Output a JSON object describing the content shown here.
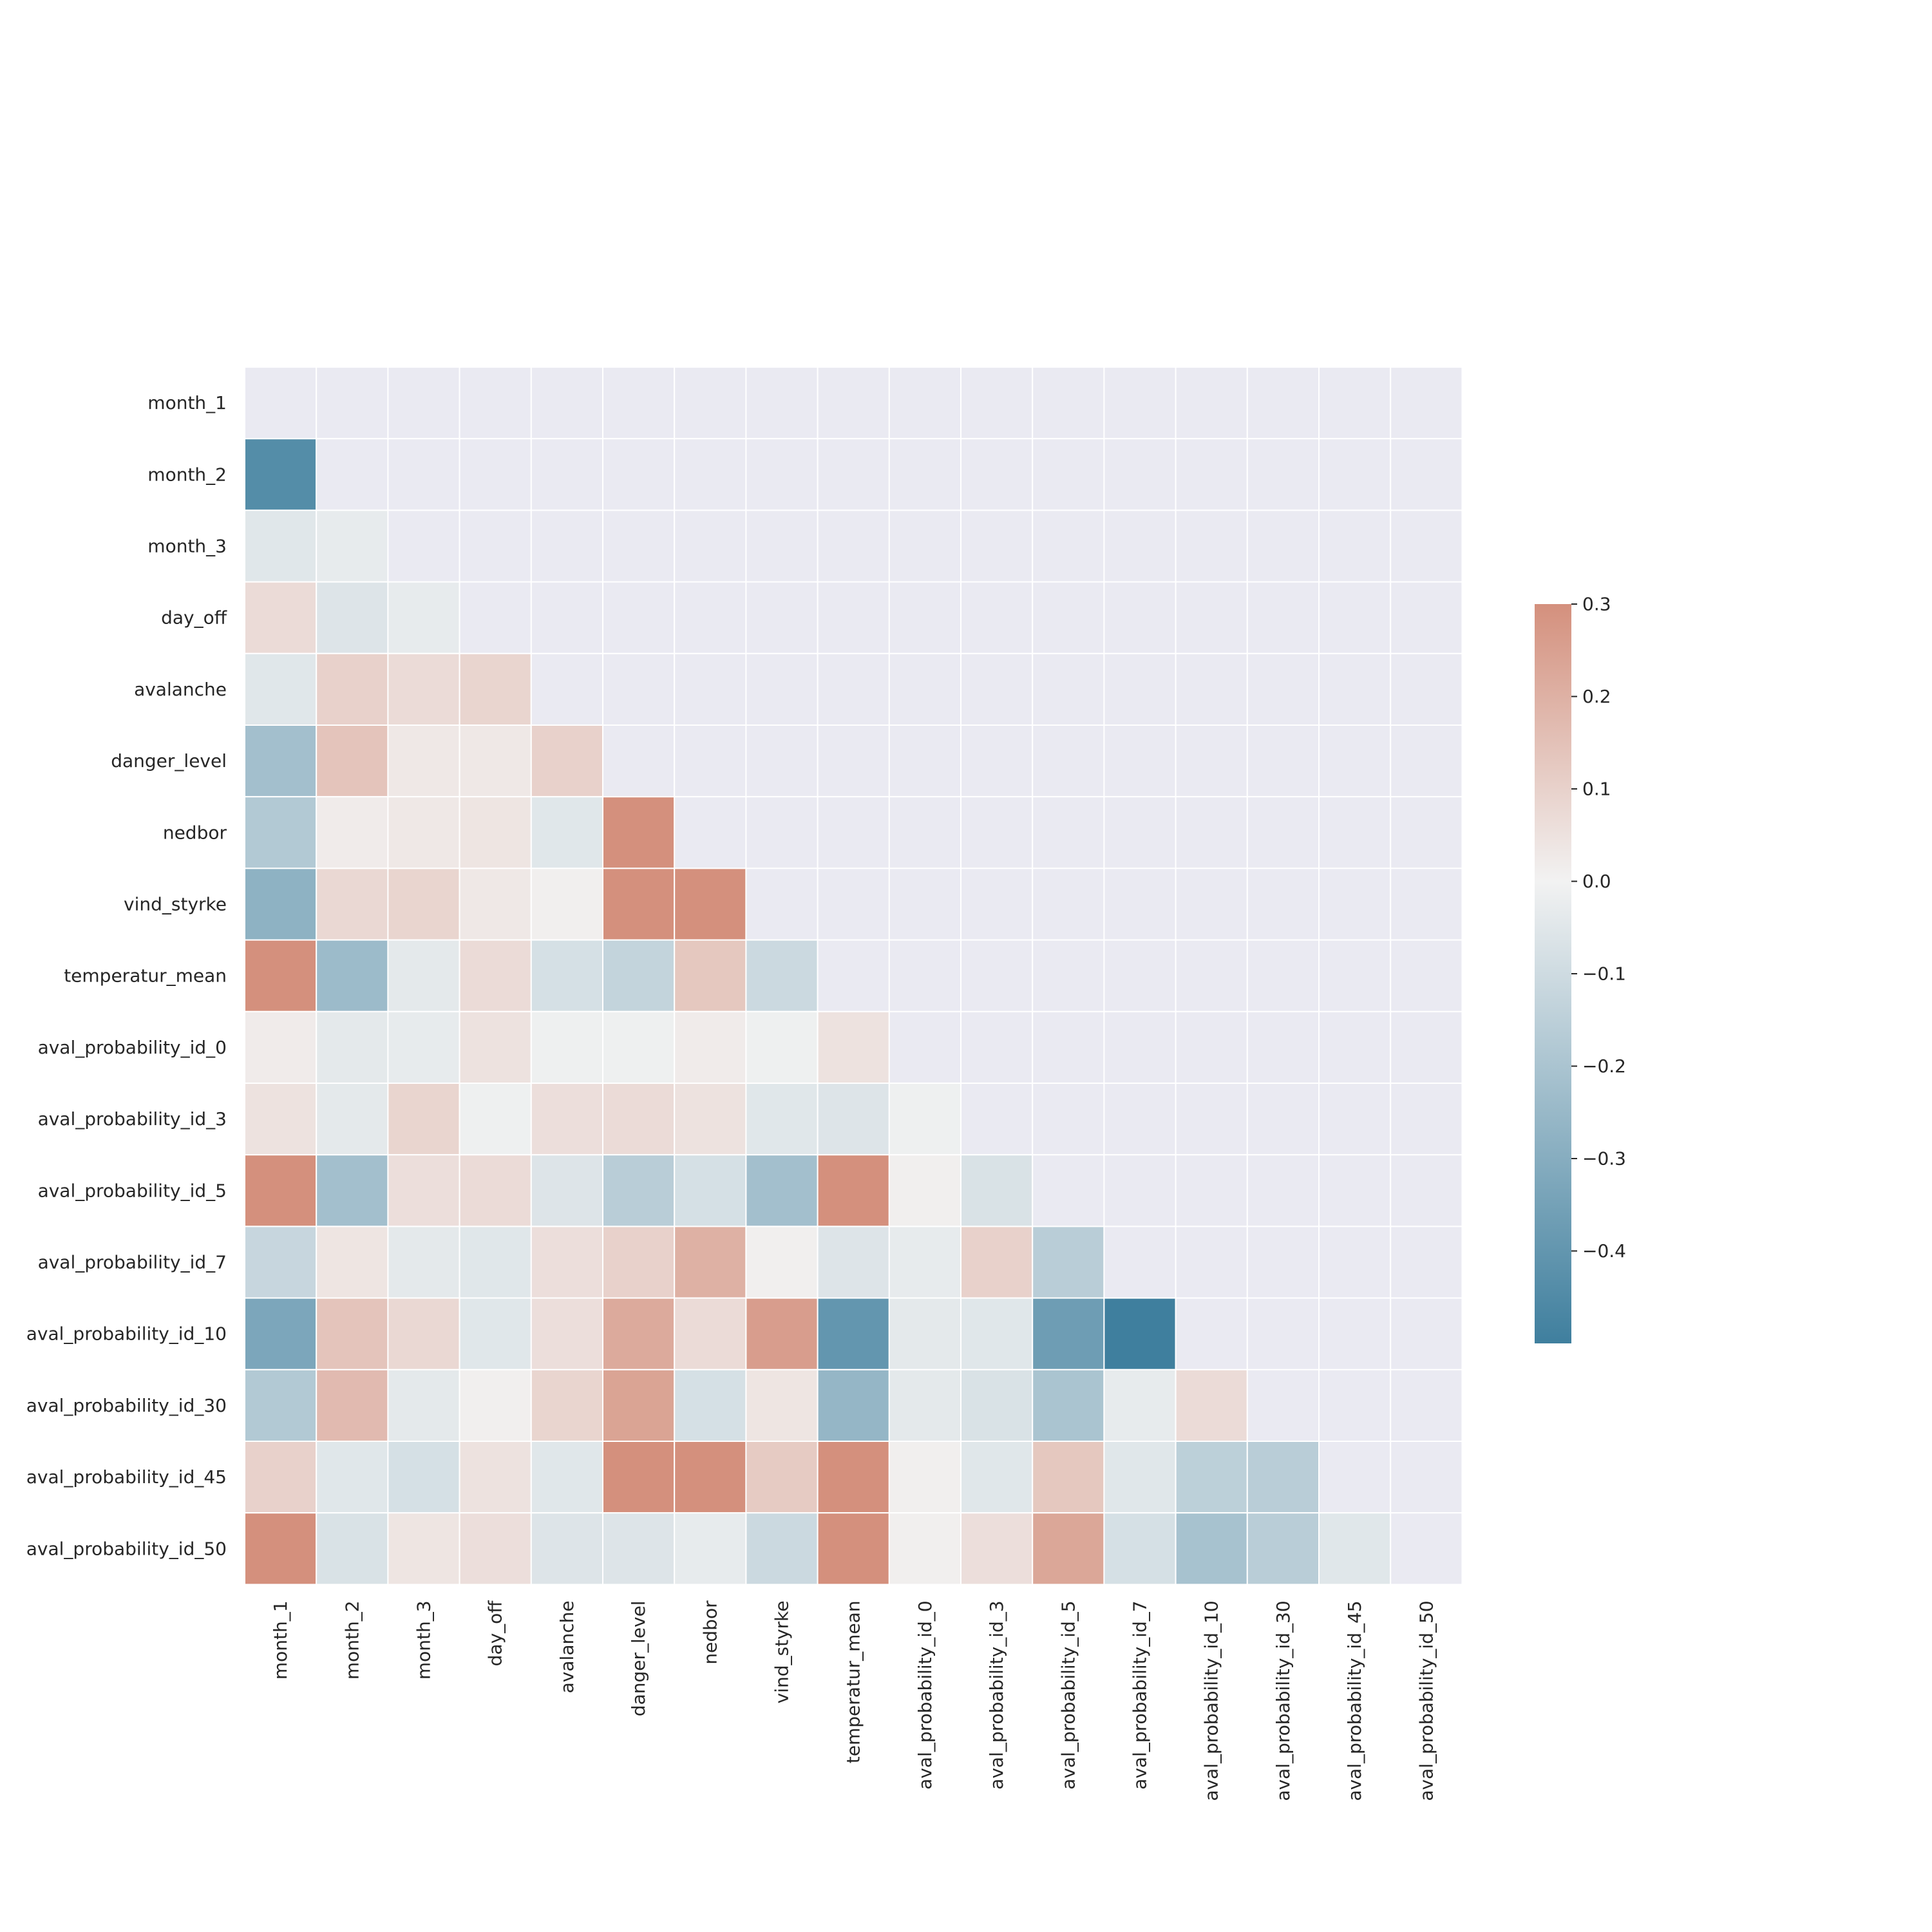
{
  "chart_data": {
    "type": "heatmap",
    "mask": "upper-triangle",
    "labels": [
      "month_1",
      "month_2",
      "month_3",
      "day_off",
      "avalanche",
      "danger_level",
      "nedbor",
      "vind_styrke",
      "temperatur_mean",
      "aval_probability_id_0",
      "aval_probability_id_3",
      "aval_probability_id_5",
      "aval_probability_id_7",
      "aval_probability_id_10",
      "aval_probability_id_30",
      "aval_probability_id_45",
      "aval_probability_id_50"
    ],
    "matrix": [
      [],
      [
        -0.44
      ],
      [
        -0.05,
        -0.03
      ],
      [
        0.07,
        -0.06,
        -0.03
      ],
      [
        -0.05,
        0.1,
        0.07,
        0.09
      ],
      [
        -0.22,
        0.14,
        0.03,
        0.03,
        0.1
      ],
      [
        -0.18,
        0.02,
        0.03,
        0.04,
        -0.05,
        0.3
      ],
      [
        -0.28,
        0.08,
        0.09,
        0.03,
        0.01,
        0.3,
        0.3
      ],
      [
        0.3,
        -0.24,
        -0.04,
        0.07,
        -0.08,
        -0.13,
        0.13,
        -0.11
      ],
      [
        0.02,
        -0.04,
        -0.03,
        0.05,
        -0.01,
        -0.01,
        0.02,
        -0.01,
        0.05
      ],
      [
        0.05,
        -0.04,
        0.09,
        -0.01,
        0.06,
        0.07,
        0.05,
        -0.05,
        -0.06,
        -0.01
      ],
      [
        0.3,
        -0.22,
        0.06,
        0.07,
        -0.06,
        -0.16,
        -0.08,
        -0.22,
        0.3,
        0.01,
        -0.07
      ],
      [
        -0.12,
        0.04,
        -0.04,
        -0.05,
        0.06,
        0.1,
        0.2,
        0.01,
        -0.06,
        -0.03,
        0.1,
        -0.16
      ],
      [
        -0.33,
        0.14,
        0.08,
        -0.05,
        0.06,
        0.22,
        0.07,
        0.26,
        -0.4,
        -0.04,
        -0.05,
        -0.37,
        -0.5
      ],
      [
        -0.18,
        0.17,
        -0.04,
        0.01,
        0.09,
        0.24,
        -0.08,
        0.04,
        -0.26,
        -0.04,
        -0.07,
        -0.2,
        -0.03,
        0.07
      ],
      [
        0.1,
        -0.05,
        -0.08,
        0.05,
        -0.05,
        0.3,
        0.3,
        0.12,
        0.3,
        0.01,
        -0.05,
        0.13,
        -0.05,
        -0.15,
        -0.16
      ],
      [
        0.3,
        -0.07,
        0.04,
        0.06,
        -0.06,
        -0.06,
        -0.03,
        -0.11,
        0.3,
        0.01,
        0.06,
        0.23,
        -0.08,
        -0.21,
        -0.16,
        -0.05
      ]
    ],
    "masked_color": "#eaeaf2",
    "colormap": {
      "low": "#3f7f9e",
      "mid": "#f2f2f2",
      "high": "#d4907d"
    },
    "vmin": -0.5,
    "vmax": 0.3,
    "colorbar": {
      "min": -0.5,
      "max": 0.3,
      "ticks": [
        0.3,
        0.2,
        0.1,
        0.0,
        -0.1,
        -0.2,
        -0.3,
        -0.4
      ],
      "tick_labels": [
        "0.3",
        "0.2",
        "0.1",
        "0.0",
        "−0.1",
        "−0.2",
        "−0.3",
        "−0.4"
      ]
    }
  }
}
